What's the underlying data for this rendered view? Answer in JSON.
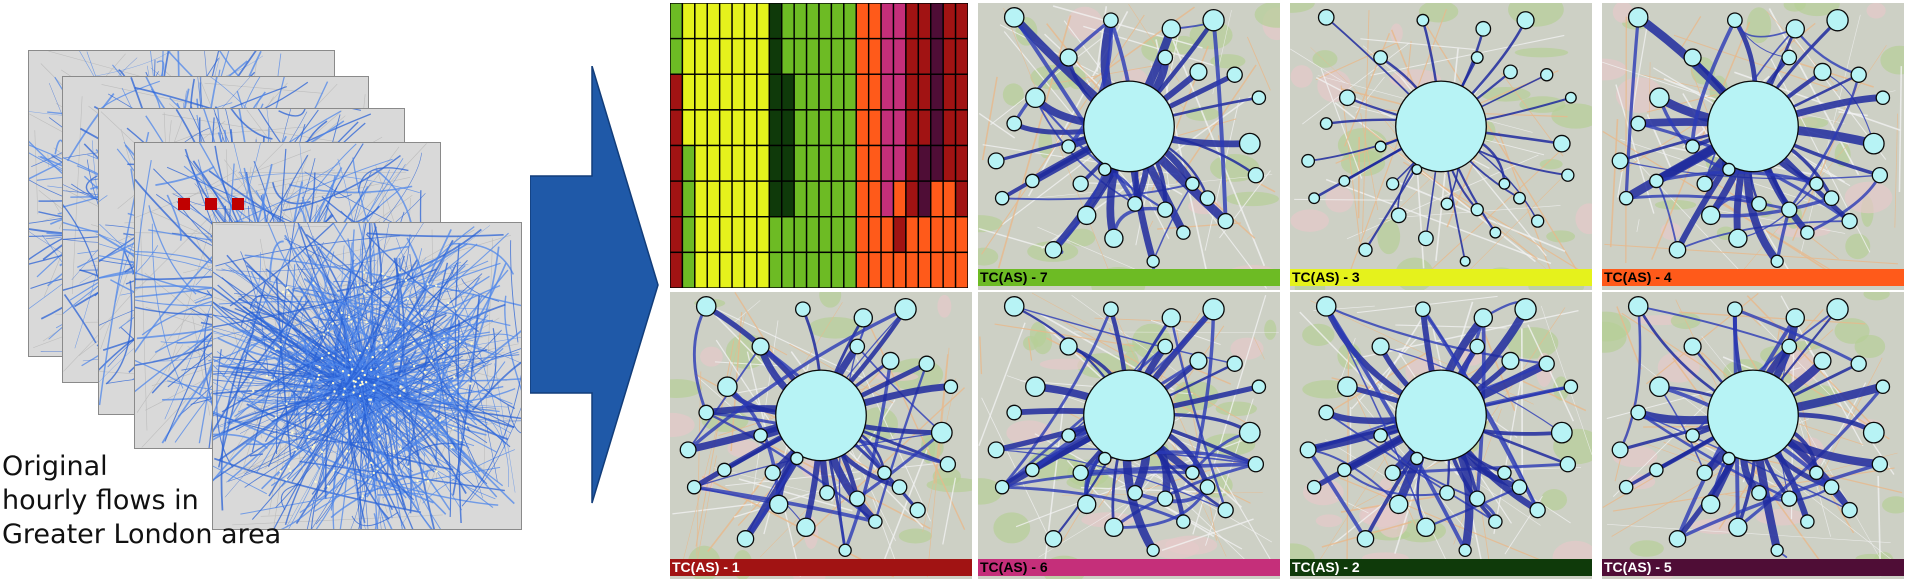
{
  "caption": {
    "line1": "Original",
    "line2": "hourly flows in",
    "line3": "Greater London area"
  },
  "clusters": [
    {
      "label": "TC(AS) - 7",
      "color": "#6dbb24",
      "text_color": "#000000"
    },
    {
      "label": "TC(AS) - 3",
      "color": "#e5f21c",
      "text_color": "#000000"
    },
    {
      "label": "TC(AS) - 4",
      "color": "#ff5a1a",
      "text_color": "#000000"
    },
    {
      "label": "TC(AS) - 1",
      "color": "#a11313",
      "text_color": "#ffffff"
    },
    {
      "label": "TC(AS) - 6",
      "color": "#c52f7a",
      "text_color": "#000000"
    },
    {
      "label": "TC(AS) - 2",
      "color": "#0f3a0a",
      "text_color": "#ffffff"
    },
    {
      "label": "TC(AS) - 5",
      "color": "#4f0d36",
      "text_color": "#ffffff"
    }
  ],
  "heatmap": {
    "colors": {
      "1": "#a11313",
      "2": "#0f3a0a",
      "3": "#e5f21c",
      "4": "#ff5a1a",
      "5": "#4f0d36",
      "6": "#c52f7a",
      "7": "#6dbb24"
    },
    "rows": [
      [
        7,
        3,
        3,
        3,
        3,
        3,
        3,
        3,
        2,
        7,
        7,
        7,
        7,
        7,
        7,
        4,
        4,
        6,
        6,
        1,
        1,
        5,
        1,
        1
      ],
      [
        7,
        3,
        3,
        3,
        3,
        3,
        3,
        3,
        2,
        7,
        7,
        7,
        7,
        7,
        7,
        4,
        4,
        6,
        6,
        1,
        1,
        5,
        1,
        1
      ],
      [
        1,
        3,
        3,
        3,
        3,
        3,
        3,
        3,
        2,
        2,
        7,
        7,
        7,
        7,
        7,
        4,
        4,
        6,
        6,
        1,
        1,
        5,
        1,
        1
      ],
      [
        1,
        3,
        3,
        3,
        3,
        3,
        3,
        3,
        2,
        2,
        7,
        7,
        7,
        7,
        7,
        4,
        4,
        6,
        6,
        1,
        1,
        5,
        1,
        1
      ],
      [
        1,
        7,
        3,
        3,
        3,
        3,
        3,
        3,
        2,
        2,
        7,
        7,
        7,
        7,
        7,
        4,
        4,
        6,
        6,
        1,
        5,
        5,
        1,
        1
      ],
      [
        1,
        7,
        3,
        3,
        3,
        3,
        3,
        3,
        2,
        2,
        7,
        7,
        7,
        7,
        7,
        4,
        4,
        6,
        4,
        1,
        5,
        4,
        4,
        1
      ],
      [
        1,
        7,
        3,
        3,
        3,
        3,
        3,
        3,
        7,
        7,
        7,
        7,
        7,
        7,
        7,
        4,
        4,
        4,
        1,
        4,
        4,
        4,
        4,
        4
      ],
      [
        1,
        7,
        3,
        3,
        3,
        3,
        3,
        3,
        7,
        7,
        7,
        7,
        7,
        7,
        7,
        4,
        4,
        4,
        4,
        4,
        4,
        4,
        4,
        4
      ]
    ]
  }
}
